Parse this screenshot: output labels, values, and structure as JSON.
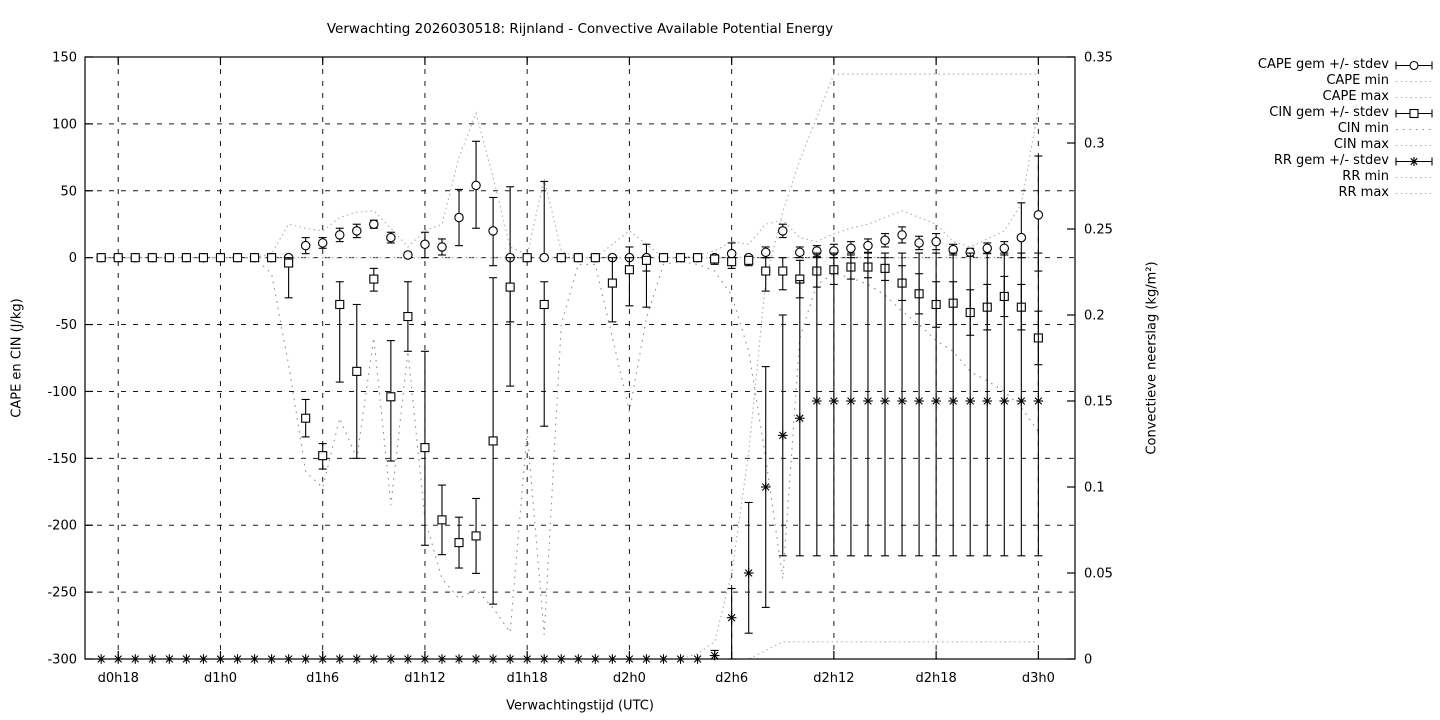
{
  "title": "Verwachting 2026030518: Rijnland - Convective Available Potential Energy",
  "xlabel": "Verwachtingstijd (UTC)",
  "ylabel_left": "CAPE en CIN (J/kg)",
  "ylabel_right": "Convectieve neerslag (kg/m²)",
  "legend_position": "top-right-outside",
  "chart_data": {
    "type": "line",
    "x_unit": "forecast hour",
    "xlim": [
      16.05,
      74.15
    ],
    "ylim_left": [
      -300,
      150
    ],
    "ylim_right": [
      0,
      0.35
    ],
    "grid": true,
    "x_tick_hours": [
      18,
      24,
      30,
      36,
      42,
      48,
      54,
      60,
      66,
      72
    ],
    "x_tick_labels": [
      "d0h18",
      "d1h0",
      "d1h6",
      "d1h12",
      "d1h18",
      "d2h0",
      "d2h6",
      "d2h12",
      "d2h18",
      "d3h0"
    ],
    "y_ticks_left": [
      150,
      100,
      50,
      0,
      -50,
      -100,
      -150,
      -200,
      -250,
      -300
    ],
    "y_tick_labels_left": [
      "150",
      "100",
      "50",
      "0",
      "-50",
      "-100",
      "-150",
      "-200",
      "-250",
      "-300"
    ],
    "y_ticks_right": [
      0.35,
      0.3,
      0.25,
      0.2,
      0.15,
      0.1,
      0.05,
      0
    ],
    "y_tick_labels_right": [
      "0.35",
      "0.3",
      "0.25",
      "0.2",
      "0.15",
      "0.1",
      "0.05",
      "0"
    ],
    "x_hours": [
      17,
      18,
      19,
      20,
      21,
      22,
      23,
      24,
      25,
      26,
      27,
      28,
      29,
      30,
      31,
      32,
      33,
      34,
      35,
      36,
      37,
      38,
      39,
      40,
      41,
      42,
      43,
      44,
      45,
      46,
      47,
      48,
      49,
      50,
      51,
      52,
      53,
      54,
      55,
      56,
      57,
      58,
      59,
      60,
      61,
      62,
      63,
      64,
      65,
      66,
      67,
      68,
      69,
      70,
      71,
      72
    ],
    "series": [
      {
        "name": "CAPE gem +/- stdev",
        "axis": "left",
        "kind": "errbar",
        "marker": "circle",
        "color": "#000000",
        "values": [
          0,
          0,
          0,
          0,
          0,
          0,
          0,
          0,
          0,
          0,
          0,
          0,
          9,
          11,
          17,
          20,
          25,
          15,
          2,
          10,
          8,
          30,
          54,
          20,
          0,
          0,
          0,
          0,
          0,
          0,
          0,
          0,
          0,
          0,
          0,
          0,
          0,
          3,
          0,
          4,
          20,
          4,
          5,
          5,
          7,
          9,
          13,
          17,
          11,
          12,
          6,
          4,
          7,
          7,
          15,
          32
        ],
        "lo": [
          0,
          0,
          0,
          0,
          0,
          0,
          0,
          0,
          0,
          0,
          0,
          0,
          3,
          7,
          12,
          15,
          22,
          11,
          0,
          0,
          2,
          9,
          22,
          -6,
          -96,
          0,
          0,
          0,
          0,
          0,
          0,
          -8,
          -37,
          0,
          0,
          0,
          0,
          -5,
          0,
          0,
          15,
          0,
          1,
          0,
          2,
          4,
          8,
          11,
          6,
          6,
          2,
          1,
          3,
          2,
          0,
          -10
        ],
        "hi": [
          0,
          0,
          0,
          0,
          0,
          0,
          0,
          0,
          0,
          0,
          0,
          0,
          15,
          15,
          22,
          25,
          28,
          19,
          4,
          19,
          14,
          51,
          87,
          45,
          53,
          0,
          57,
          0,
          0,
          0,
          0,
          8,
          10,
          0,
          0,
          0,
          0,
          11,
          0,
          8,
          25,
          8,
          9,
          10,
          12,
          14,
          18,
          23,
          16,
          18,
          10,
          7,
          11,
          12,
          41,
          76
        ]
      },
      {
        "name": "CAPE min",
        "axis": "left",
        "kind": "dots",
        "color": "#b0b0b0",
        "dash": "1.6 3.2",
        "values": [
          0,
          0,
          0,
          0,
          0,
          0,
          0,
          0,
          0,
          0,
          0,
          0,
          0,
          0,
          0,
          0,
          0,
          0,
          0,
          0,
          0,
          0,
          0,
          0,
          0,
          0,
          0,
          0,
          0,
          0,
          0,
          0,
          0,
          0,
          0,
          0,
          0,
          0,
          0,
          0,
          0,
          0,
          0,
          0,
          0,
          0,
          0,
          0,
          0,
          0,
          0,
          0,
          0,
          0,
          0,
          0
        ]
      },
      {
        "name": "CAPE max",
        "axis": "left",
        "kind": "dots",
        "color": "#b0b0b0",
        "dash": "1.6 3.2",
        "values": [
          0,
          0,
          0,
          0,
          0,
          0,
          0,
          0,
          0,
          0,
          3,
          25,
          22,
          20,
          30,
          34,
          35,
          22,
          8,
          20,
          25,
          75,
          108,
          60,
          8,
          2,
          59,
          5,
          0,
          0,
          10,
          20,
          10,
          0,
          0,
          2,
          5,
          12,
          10,
          25,
          28,
          15,
          12,
          18,
          22,
          25,
          30,
          35,
          30,
          25,
          12,
          8,
          14,
          20,
          40,
          112
        ]
      },
      {
        "name": "CIN gem +/- stdev",
        "axis": "left",
        "kind": "errbar",
        "marker": "square",
        "color": "#000000",
        "values": [
          0,
          0,
          0,
          0,
          0,
          0,
          0,
          0,
          0,
          0,
          0,
          -4,
          -120,
          -148,
          -35,
          -85,
          -16,
          -104,
          -44,
          -142,
          -196,
          -213,
          -208,
          -137,
          -22,
          0,
          -35,
          0,
          0,
          0,
          -19,
          -9,
          -2,
          0,
          0,
          0,
          -1,
          -3,
          -2,
          -10,
          -10,
          -16,
          -10,
          -9,
          -7,
          -7,
          -8,
          -19,
          -27,
          -35,
          -34,
          -41,
          -37,
          -29,
          -37,
          -60
        ],
        "lo": [
          0,
          0,
          0,
          0,
          0,
          0,
          0,
          0,
          0,
          0,
          0,
          -30,
          -134,
          -158,
          -93,
          -150,
          -25,
          -152,
          -70,
          -215,
          -222,
          -232,
          -236,
          -259,
          -48,
          0,
          -126,
          0,
          0,
          0,
          -48,
          -36,
          -10,
          0,
          0,
          0,
          -5,
          -8,
          -6,
          -25,
          -24,
          -30,
          -22,
          -20,
          -16,
          -15,
          -17,
          -32,
          -42,
          -52,
          -50,
          -58,
          -54,
          -44,
          -54,
          -80
        ],
        "hi": [
          0,
          0,
          0,
          0,
          0,
          0,
          0,
          0,
          0,
          0,
          0,
          0,
          -106,
          -139,
          -18,
          -35,
          -8,
          -62,
          -18,
          -70,
          -170,
          -194,
          -180,
          -15,
          0,
          0,
          -18,
          0,
          0,
          0,
          0,
          0,
          0,
          0,
          0,
          0,
          0,
          0,
          0,
          0,
          0,
          -2,
          0,
          0,
          0,
          0,
          0,
          -6,
          -12,
          -18,
          -18,
          -24,
          -20,
          -14,
          -20,
          -40
        ]
      },
      {
        "name": "CIN min",
        "axis": "left",
        "kind": "dots",
        "color": "#8f8f8f",
        "dash": "1.6 5",
        "values": [
          0,
          0,
          0,
          0,
          0,
          0,
          0,
          0,
          0,
          0,
          -12,
          -80,
          -160,
          -172,
          -120,
          -150,
          -60,
          -185,
          -70,
          -195,
          -240,
          -255,
          -248,
          -262,
          -280,
          -130,
          -282,
          -50,
          -5,
          -5,
          -60,
          -115,
          -45,
          -5,
          -3,
          -5,
          -10,
          -28,
          -70,
          -150,
          -240,
          -60,
          -20,
          -12,
          -15,
          -20,
          -28,
          -40,
          -50,
          -62,
          -70,
          -85,
          -92,
          -100,
          -112,
          -130
        ]
      },
      {
        "name": "CIN max",
        "axis": "left",
        "kind": "dots",
        "color": "#b0b0b0",
        "dash": "1.6 3.2",
        "values": [
          0,
          0,
          0,
          0,
          0,
          0,
          0,
          0,
          0,
          0,
          0,
          0,
          0,
          0,
          0,
          0,
          0,
          0,
          0,
          0,
          0,
          0,
          0,
          0,
          0,
          0,
          0,
          0,
          0,
          0,
          0,
          0,
          0,
          0,
          0,
          0,
          0,
          0,
          0,
          0,
          0,
          0,
          0,
          0,
          0,
          0,
          0,
          0,
          0,
          0,
          0,
          0,
          0,
          0,
          0,
          0
        ]
      },
      {
        "name": "RR gem +/- stdev",
        "axis": "right",
        "kind": "errbar",
        "marker": "star",
        "color": "#000000",
        "values": [
          0,
          0,
          0,
          0,
          0,
          0,
          0,
          0,
          0,
          0,
          0,
          0,
          0,
          0,
          0,
          0,
          0,
          0,
          0,
          0,
          0,
          0,
          0,
          0,
          0,
          0,
          0,
          0,
          0,
          0,
          0,
          0,
          0,
          0,
          0,
          0,
          0.002,
          0.024,
          0.05,
          0.1,
          0.13,
          0.14,
          0.15,
          0.15,
          0.15,
          0.15,
          0.15,
          0.15,
          0.15,
          0.15,
          0.15,
          0.15,
          0.15,
          0.15,
          0.15,
          0.15
        ],
        "lo": [
          0,
          0,
          0,
          0,
          0,
          0,
          0,
          0,
          0,
          0,
          0,
          0,
          0,
          0,
          0,
          0,
          0,
          0,
          0,
          0,
          0,
          0,
          0,
          0,
          0,
          0,
          0,
          0,
          0,
          0,
          0,
          0,
          0,
          0,
          0,
          0,
          0,
          0,
          0.015,
          0.03,
          0.06,
          0.06,
          0.06,
          0.06,
          0.06,
          0.06,
          0.06,
          0.06,
          0.06,
          0.06,
          0.06,
          0.06,
          0.06,
          0.06,
          0.06,
          0.06
        ],
        "hi": [
          0,
          0,
          0,
          0,
          0,
          0,
          0,
          0,
          0,
          0,
          0,
          0,
          0,
          0,
          0,
          0,
          0,
          0,
          0,
          0,
          0,
          0,
          0,
          0,
          0,
          0,
          0,
          0,
          0,
          0,
          0,
          0,
          0,
          0,
          0,
          0,
          0.005,
          0.041,
          0.091,
          0.17,
          0.2,
          0.22,
          0.236,
          0.236,
          0.236,
          0.236,
          0.236,
          0.236,
          0.236,
          0.236,
          0.236,
          0.236,
          0.236,
          0.236,
          0.236,
          0.236
        ]
      },
      {
        "name": "RR min",
        "axis": "right",
        "kind": "dots",
        "color": "#b0b0b0",
        "dash": "1.6 3.2",
        "values": [
          0,
          0,
          0,
          0,
          0,
          0,
          0,
          0,
          0,
          0,
          0,
          0,
          0,
          0,
          0,
          0,
          0,
          0,
          0,
          0,
          0,
          0,
          0,
          0,
          0,
          0,
          0,
          0,
          0,
          0,
          0,
          0,
          0,
          0,
          0,
          0,
          0,
          0,
          0,
          0.005,
          0.01,
          0.01,
          0.01,
          0.01,
          0.01,
          0.01,
          0.01,
          0.01,
          0.01,
          0.01,
          0.01,
          0.01,
          0.01,
          0.01,
          0.01,
          0.01
        ]
      },
      {
        "name": "RR max",
        "axis": "right",
        "kind": "dots",
        "color": "#b0b0b0",
        "dash": "1.6 3.2",
        "values": [
          0,
          0,
          0,
          0,
          0,
          0,
          0,
          0,
          0,
          0,
          0,
          0,
          0,
          0,
          0,
          0,
          0,
          0,
          0,
          0,
          0,
          0,
          0,
          0,
          0,
          0,
          0,
          0,
          0,
          0,
          0,
          0,
          0,
          0,
          0,
          0.003,
          0.01,
          0.05,
          0.12,
          0.22,
          0.26,
          0.29,
          0.315,
          0.34,
          0.34,
          0.34,
          0.34,
          0.34,
          0.34,
          0.34,
          0.34,
          0.34,
          0.34,
          0.34,
          0.34,
          0.34
        ]
      }
    ]
  }
}
